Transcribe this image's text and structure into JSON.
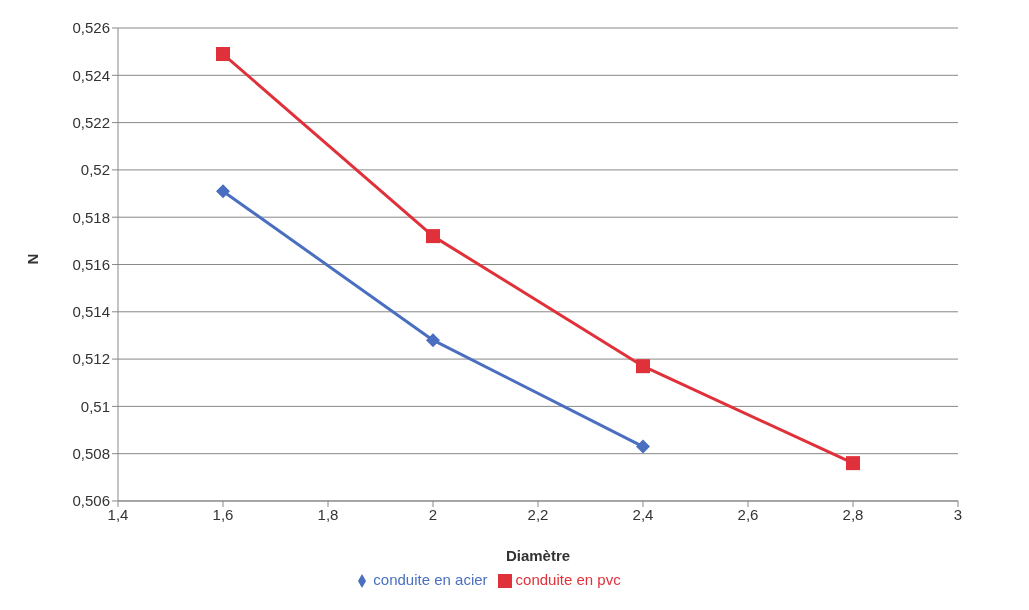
{
  "chart_data": {
    "type": "line",
    "xlabel": "Diamètre",
    "ylabel": "N",
    "series": [
      {
        "name": "conduite en acier",
        "color": "#4a6fc0",
        "marker": "diamond",
        "x": [
          1.6,
          2,
          2.4
        ],
        "values": [
          0.5191,
          0.5128,
          0.5083
        ]
      },
      {
        "name": "conduite en pvc",
        "color": "#e0313a",
        "marker": "square",
        "x": [
          1.6,
          2,
          2.4,
          2.8
        ],
        "values": [
          0.5249,
          0.5172,
          0.5117,
          0.5076
        ]
      }
    ],
    "xlim": [
      1.4,
      3
    ],
    "xticks": [
      {
        "value": 1.4,
        "label": "1,4"
      },
      {
        "value": 1.6,
        "label": "1,6"
      },
      {
        "value": 1.8,
        "label": "1,8"
      },
      {
        "value": 2,
        "label": "2"
      },
      {
        "value": 2.2,
        "label": "2,2"
      },
      {
        "value": 2.4,
        "label": "2,4"
      },
      {
        "value": 2.6,
        "label": "2,6"
      },
      {
        "value": 2.8,
        "label": "2,8"
      },
      {
        "value": 3,
        "label": "3"
      }
    ],
    "ylim": [
      0.506,
      0.526
    ],
    "yticks": [
      {
        "value": 0.506,
        "label": "0,506"
      },
      {
        "value": 0.508,
        "label": "0,508"
      },
      {
        "value": 0.51,
        "label": "0,51"
      },
      {
        "value": 0.512,
        "label": "0,512"
      },
      {
        "value": 0.514,
        "label": "0,514"
      },
      {
        "value": 0.516,
        "label": "0,516"
      },
      {
        "value": 0.518,
        "label": "0,518"
      },
      {
        "value": 0.52,
        "label": "0,52"
      },
      {
        "value": 0.522,
        "label": "0,522"
      },
      {
        "value": 0.524,
        "label": "0,524"
      },
      {
        "value": 0.526,
        "label": "0,526"
      }
    ],
    "grid": "y",
    "legend": "bottom",
    "line_style": "solid"
  }
}
